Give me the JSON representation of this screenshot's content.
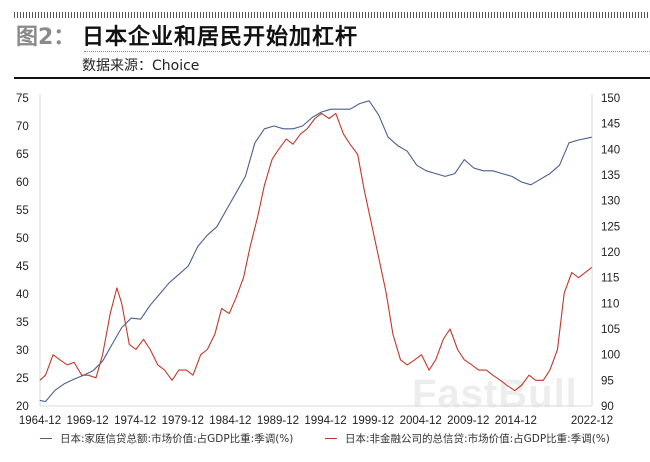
{
  "header": {
    "figure_label": "图2：",
    "title": "日本企业和居民开始加杠杆",
    "source": "数据来源：Choice"
  },
  "watermark": "FastBull",
  "colors": {
    "household": "#4a5f8f",
    "corporate": "#c0392b",
    "axis": "#d9d9d9"
  },
  "chart_data": {
    "type": "line",
    "title": "日本企业和居民开始加杠杆",
    "xlabel": "",
    "ylabel_left": "",
    "ylabel_right": "",
    "x_tick_labels": [
      "1964-12",
      "1969-12",
      "1974-12",
      "1979-12",
      "1984-12",
      "1989-12",
      "1994-12",
      "1999-12",
      "2004-12",
      "2009-12",
      "2014-12",
      "2022-12"
    ],
    "y_left_ticks": [
      20,
      25,
      30,
      35,
      40,
      45,
      50,
      55,
      60,
      65,
      70,
      75
    ],
    "y_right_ticks": [
      90,
      95,
      100,
      105,
      110,
      115,
      120,
      125,
      130,
      135,
      140,
      145,
      150
    ],
    "ylim_left": [
      20,
      75
    ],
    "ylim_right": [
      90,
      150
    ],
    "grid": false,
    "legend_position": "bottom",
    "series": [
      {
        "name": "日本:家庭信贷总额:市场价值:占GDP比重:季调(%)",
        "axis": "left",
        "x": [
          1964.9,
          1965.5,
          1966.5,
          1967.5,
          1968.5,
          1969.5,
          1970.5,
          1971.5,
          1972.5,
          1973.5,
          1974.5,
          1975.5,
          1976.5,
          1977.5,
          1978.5,
          1979.5,
          1980.5,
          1981.5,
          1982.5,
          1983.5,
          1984.5,
          1985.5,
          1986.5,
          1987.5,
          1988.5,
          1989.5,
          1990.5,
          1991.5,
          1992.5,
          1993.5,
          1994.5,
          1995.5,
          1996.5,
          1997.5,
          1998.5,
          1999.5,
          2000.5,
          2001.5,
          2002.5,
          2003.5,
          2004.5,
          2005.5,
          2006.5,
          2007.5,
          2008.5,
          2009.5,
          2010.5,
          2011.5,
          2012.5,
          2013.5,
          2014.5,
          2015.5,
          2016.5,
          2017.5,
          2018.5,
          2019.5,
          2020.5,
          2021.5,
          2022.9
        ],
        "values": [
          21.0,
          20.8,
          22.8,
          24.0,
          24.8,
          25.5,
          26.3,
          28.0,
          31.0,
          34.0,
          35.7,
          35.5,
          38.0,
          40.0,
          42.0,
          43.5,
          45.0,
          48.5,
          50.5,
          52.0,
          55.0,
          58.0,
          61.0,
          67.0,
          69.5,
          70.0,
          69.5,
          69.5,
          70.0,
          71.5,
          72.5,
          73.0,
          73.0,
          73.0,
          74.0,
          74.5,
          72.0,
          68.0,
          66.5,
          65.5,
          63.0,
          62.0,
          61.5,
          61.0,
          61.5,
          64.0,
          62.5,
          62.0,
          62.0,
          61.5,
          61.0,
          60.0,
          59.5,
          60.5,
          61.5,
          63.0,
          67.0,
          67.5,
          68.0
        ]
      },
      {
        "name": "日本:非金融公司的总信贷:市场价值:占GDP比重:季调(%)",
        "axis": "right",
        "x": [
          1964.9,
          1965.5,
          1966.3,
          1967.0,
          1967.8,
          1968.5,
          1969.3,
          1970.0,
          1970.8,
          1971.5,
          1972.3,
          1973.0,
          1973.5,
          1974.3,
          1975.0,
          1975.8,
          1976.5,
          1977.3,
          1978.0,
          1978.8,
          1979.5,
          1980.3,
          1981.0,
          1981.8,
          1982.5,
          1983.3,
          1984.0,
          1984.8,
          1985.5,
          1986.3,
          1987.0,
          1987.8,
          1988.5,
          1989.3,
          1990.0,
          1990.8,
          1991.5,
          1992.3,
          1993.0,
          1993.8,
          1994.5,
          1995.3,
          1996.0,
          1996.8,
          1997.5,
          1998.3,
          1999.0,
          1999.8,
          2000.5,
          2001.3,
          2002.0,
          2002.8,
          2003.5,
          2004.3,
          2005.0,
          2005.8,
          2006.5,
          2007.3,
          2008.0,
          2008.8,
          2009.5,
          2010.3,
          2011.0,
          2011.8,
          2012.5,
          2013.3,
          2014.0,
          2014.8,
          2015.5,
          2016.3,
          2017.0,
          2017.8,
          2018.5,
          2019.3,
          2020.0,
          2020.8,
          2021.5,
          2022.9
        ],
        "values": [
          95,
          96,
          100,
          99,
          98,
          98.5,
          96,
          96,
          95.5,
          100,
          108,
          113,
          110,
          102,
          101,
          103,
          101,
          98,
          97,
          95,
          97,
          97,
          96,
          100,
          101,
          104,
          109,
          108,
          111,
          115,
          121,
          127,
          133,
          138,
          140,
          142,
          141,
          143,
          144,
          146,
          147,
          146,
          147,
          143,
          141,
          139,
          132,
          125,
          119,
          112,
          104,
          99,
          98,
          99,
          100,
          97,
          99,
          103,
          105,
          101,
          99,
          98,
          97,
          97,
          96,
          95,
          94,
          93,
          94,
          96,
          95,
          95,
          97,
          101,
          112,
          116,
          115,
          117
        ]
      }
    ]
  },
  "legend": [
    {
      "label": "日本:家庭信贷总额:市场价值:占GDP比重:季调(%)",
      "color": "#4a5f8f"
    },
    {
      "label": "日本:非金融公司的总信贷:市场价值:占GDP比重:季调(%)",
      "color": "#c0392b"
    }
  ]
}
